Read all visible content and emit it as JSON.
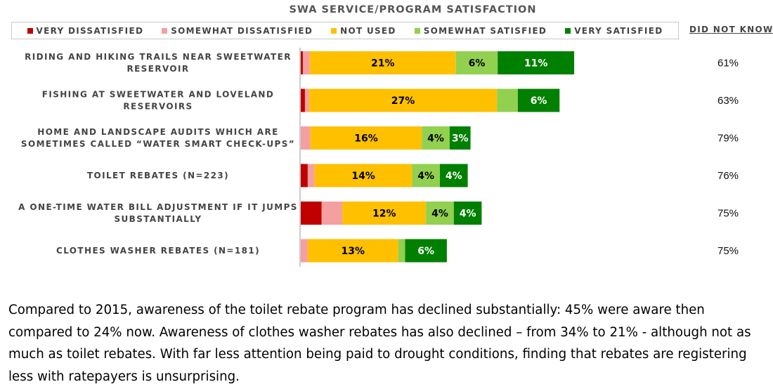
{
  "chart_data": {
    "type": "bar",
    "orientation": "horizontal",
    "stacked": true,
    "title": "SWA SERVICE/PROGRAM SATISFACTION",
    "legend_position": "top",
    "categories": [
      [
        "RIDING AND HIKING TRAILS NEAR SWEETWATER",
        "RESERVOIR"
      ],
      [
        "FISHING AT SWEETWATER AND LOVELAND",
        "RESERVOIRS"
      ],
      [
        "HOME AND LANDSCAPE AUDITS WHICH ARE",
        "SOMETIMES CALLED “WATER SMART CHECK-UPS”"
      ],
      [
        "TOILET REBATES (N=223)"
      ],
      [
        "A ONE-TIME WATER BILL ADJUSTMENT IF IT JUMPS",
        "SUBSTANTIALLY"
      ],
      [
        "CLOTHES WASHER REBATES (N=181)"
      ]
    ],
    "series": [
      {
        "name": "VERY DISSATISFIED",
        "color": "#c00000",
        "values": [
          0.3,
          0.6,
          0,
          1,
          3,
          0
        ]
      },
      {
        "name": "SOMEWHAT DISSATISFIED",
        "color": "#f4a0a0",
        "values": [
          1,
          0.6,
          1.4,
          1,
          3,
          1
        ]
      },
      {
        "name": "NOT USED",
        "color": "#ffc000",
        "values": [
          21,
          27,
          16,
          14,
          12,
          13
        ]
      },
      {
        "name": "SOMEWHAT SATISFIED",
        "color": "#92d050",
        "values": [
          6,
          3,
          4,
          4,
          4,
          1
        ]
      },
      {
        "name": "VERY SATISFIED",
        "color": "#008000",
        "values": [
          11,
          6,
          3,
          4,
          4,
          6
        ]
      }
    ],
    "data_labels": [
      [
        null,
        null,
        "21%",
        "6%",
        "11%"
      ],
      [
        null,
        null,
        "27%",
        null,
        "6%"
      ],
      [
        null,
        null,
        "16%",
        "4%",
        "3%"
      ],
      [
        null,
        null,
        "14%",
        "4%",
        "4%"
      ],
      [
        null,
        null,
        "12%",
        "4%",
        "4%"
      ],
      [
        null,
        null,
        "13%",
        null,
        "6%"
      ]
    ],
    "data_label_colors": [
      "#ffffff",
      "#000000",
      "#000000",
      "#000000",
      "#ffffff"
    ],
    "did_not_know_header": "DID NOT KNOW",
    "did_not_know": [
      "61%",
      "63%",
      "79%",
      "76%",
      "75%",
      "75%"
    ],
    "xlim": [
      0,
      100
    ]
  },
  "paragraph": "Compared to 2015, awareness of the toilet rebate program has declined substantially: 45% were aware then compared to 24% now. Awareness of clothes washer rebates has also declined – from 34% to 21% - although not as much as toilet rebates. With far less attention being paid to drought conditions, finding that rebates are registering less with ratepayers is unsurprising."
}
